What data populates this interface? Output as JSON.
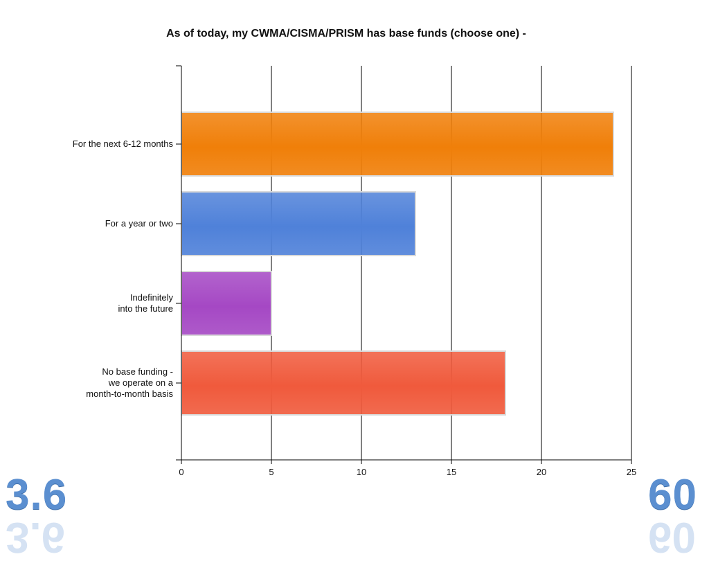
{
  "chart_data": {
    "type": "bar",
    "orientation": "horizontal",
    "title": "As of today, my CWMA/CISMA/PRISM has base funds (choose one) -",
    "categories": [
      "For the next 6-12 months",
      "For a year or two",
      "Indefinitely\ninto the future",
      "No base funding -\nwe operate on a\nmonth-to-month basis"
    ],
    "values": [
      24,
      13,
      5,
      18
    ],
    "colors": [
      "#f07f09",
      "#4f81d9",
      "#a548c4",
      "#f05a3c"
    ],
    "xlim": [
      0,
      25
    ],
    "xticks": [
      0,
      5,
      10,
      15,
      20,
      25
    ],
    "grid": true
  },
  "corner": {
    "left_number": "3.6",
    "right_number": "60"
  }
}
